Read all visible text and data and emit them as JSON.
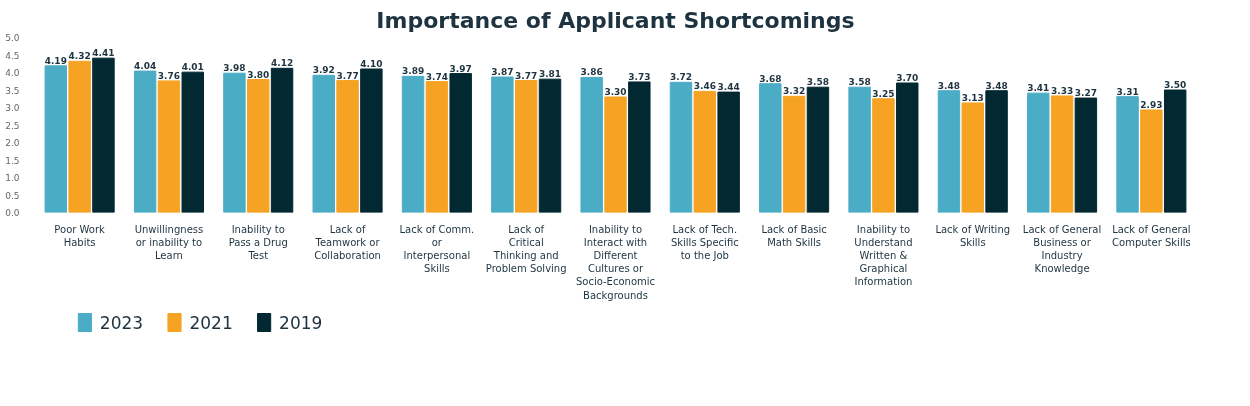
{
  "chart_data": {
    "type": "bar",
    "title": "Importance of Applicant Shortcomings",
    "categories": [
      "Poor Work Habits",
      "Unwillingness or inability to Learn",
      "Inability to Pass a Drug Test",
      "Lack of Teamwork or Collaboration",
      "Lack of Comm. or Interpersonal Skills",
      "Lack of Critical Thinking and Problem Solving",
      "Inability to Interact with Different Cultures or Socio-Economic Backgrounds",
      "Lack of Tech. Skills Specific to the Job",
      "Lack of Basic Math Skills",
      "Inability to Understand Written & Graphical Information",
      "Lack of Writing Skills",
      "Lack of General Business or Industry Knowledge",
      "Lack of General Computer Skills"
    ],
    "series": [
      {
        "name": "2023",
        "color": "#4bacc6",
        "values": [
          4.19,
          4.04,
          3.98,
          3.92,
          3.89,
          3.87,
          3.86,
          3.72,
          3.68,
          3.58,
          3.48,
          3.41,
          3.31
        ],
        "value_labels": [
          "4.19",
          "4.04",
          "3.98",
          "3.92",
          "3.89",
          "3.87",
          "3.86",
          "3.72",
          "3.68",
          "3.58",
          "3.48",
          "3.41",
          "3.31"
        ]
      },
      {
        "name": "2021",
        "color": "#f6a324",
        "values": [
          4.32,
          3.76,
          3.8,
          3.77,
          3.74,
          3.77,
          3.3,
          3.46,
          3.32,
          3.25,
          3.13,
          3.33,
          2.93
        ],
        "value_labels": [
          "4.32",
          "3.76",
          "3.80",
          "3.77",
          "3.74",
          "3.77",
          "3.30",
          "3.46",
          "3.32",
          "3.25",
          "3.13",
          "3.33",
          "2.93"
        ]
      },
      {
        "name": "2019",
        "color": "#022832",
        "values": [
          4.41,
          4.01,
          4.12,
          4.1,
          3.97,
          3.81,
          3.73,
          3.44,
          3.58,
          3.7,
          3.48,
          3.27,
          3.5
        ],
        "value_labels": [
          "4.41",
          "4.01",
          "4.12",
          "4.10",
          "3.97",
          "3.81",
          "3.73",
          "3.44",
          "3.58",
          "3.70",
          "3.48",
          "3.27",
          "3.50"
        ]
      }
    ],
    "ylim": [
      0,
      5
    ],
    "yticks": [
      {
        "value": 0,
        "label": "0.0"
      },
      {
        "value": 0.5,
        "label": "0.5"
      },
      {
        "value": 1,
        "label": "1.0"
      },
      {
        "value": 1.5,
        "label": "1.5"
      },
      {
        "value": 2,
        "label": "2.0"
      },
      {
        "value": 2.5,
        "label": "2.5"
      },
      {
        "value": 3,
        "label": "3.0"
      },
      {
        "value": 3.5,
        "label": "3.5"
      },
      {
        "value": 4,
        "label": "4.0"
      },
      {
        "value": 4.5,
        "label": "4.5"
      },
      {
        "value": 5,
        "label": "5.0"
      }
    ],
    "grid": false,
    "legend": "bottom left"
  }
}
